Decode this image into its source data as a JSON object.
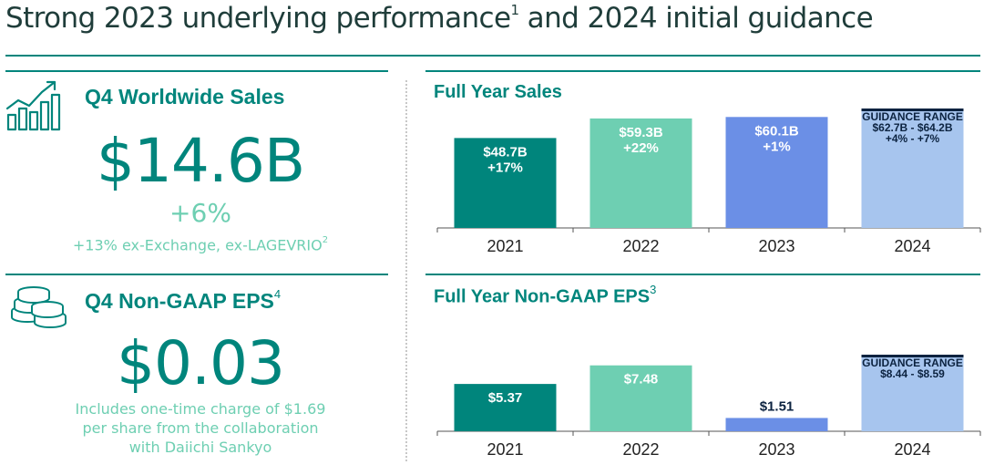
{
  "header": {
    "title": "Strong 2023 underlying performance",
    "title_sup": "1",
    "title_rest": " and 2024 initial guidance"
  },
  "colors": {
    "teal_dark": "#00857c",
    "teal_light": "#6ecfb2",
    "blue": "#6b8fe6",
    "blue_light": "#a7c5ee",
    "guidance_cap": "#0c2340"
  },
  "sales_panel": {
    "title": "Q4 Worldwide Sales",
    "value": "$14.6B",
    "growth": "+6%",
    "note": "+13% ex-Exchange, ex-LAGEVRIO",
    "note_sup": "2",
    "icon": "growth-chart-icon"
  },
  "eps_panel": {
    "title": "Q4 Non-GAAP EPS",
    "title_sup": "4",
    "value": "$0.03",
    "note_lines": [
      "Includes one-time charge of $1.69",
      "per share from the collaboration",
      "with Daiichi Sankyo"
    ],
    "icon": "coins-icon"
  },
  "chart_data": [
    {
      "type": "bar",
      "title": "Full Year Sales",
      "title_sup": "",
      "categories": [
        "2021",
        "2022",
        "2023",
        "2024"
      ],
      "values": [
        48.7,
        59.3,
        60.1,
        64.2
      ],
      "value_unit": "$B",
      "ylim": [
        0,
        64.2
      ],
      "labels": [
        [
          "$48.7B",
          "+17%"
        ],
        [
          "$59.3B",
          "+22%"
        ],
        [
          "$60.1B",
          "+1%"
        ],
        [
          "GUIDANCE RANGE",
          "$62.7B - $64.2B",
          "+4% - +7%"
        ]
      ],
      "guidance_range": [
        62.7,
        64.2
      ],
      "bar_colors": [
        "#00857c",
        "#6ecfb2",
        "#6b8fe6",
        "#a7c5ee"
      ],
      "label_colors": [
        "#ffffff",
        "#ffffff",
        "#ffffff",
        "#0c2340"
      ],
      "xlabel": "",
      "ylabel": "",
      "grid": false
    },
    {
      "type": "bar",
      "title": "Full Year Non-GAAP EPS",
      "title_sup": "3",
      "categories": [
        "2021",
        "2022",
        "2023",
        "2024"
      ],
      "values": [
        5.37,
        7.48,
        1.51,
        8.59
      ],
      "value_unit": "$",
      "ylim": [
        0,
        8.59
      ],
      "labels": [
        [
          "$5.37"
        ],
        [
          "$7.48"
        ],
        [
          "$1.51"
        ],
        [
          "GUIDANCE RANGE",
          "$8.44 - $8.59"
        ]
      ],
      "guidance_range": [
        8.44,
        8.59
      ],
      "bar_colors": [
        "#00857c",
        "#6ecfb2",
        "#6b8fe6",
        "#a7c5ee"
      ],
      "label_colors": [
        "#ffffff",
        "#ffffff",
        "#0c2340",
        "#0c2340"
      ],
      "xlabel": "",
      "ylabel": "",
      "grid": false
    }
  ]
}
